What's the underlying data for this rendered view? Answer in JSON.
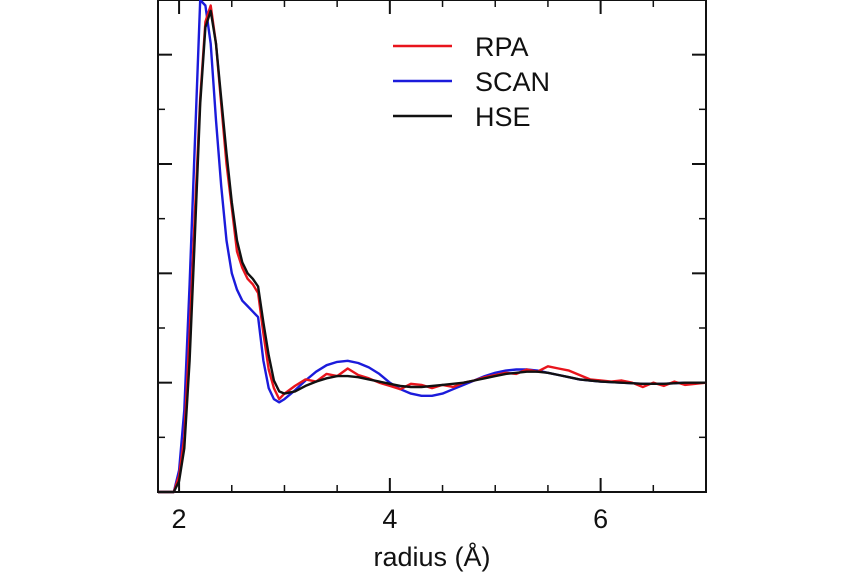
{
  "chart_data": {
    "type": "line",
    "title": "",
    "xlabel": "radius (Å)",
    "ylabel": "",
    "xlim": [
      1.8,
      7.0
    ],
    "ylim": [
      0,
      4.5
    ],
    "x_ticks": [
      2,
      4,
      6
    ],
    "x_minor_ticks": [
      2.5,
      3,
      3.5,
      4.5,
      5,
      5.5,
      6.5
    ],
    "y_ticks": [
      0.5,
      1,
      1.5,
      2,
      2.5,
      3,
      3.5,
      4
    ],
    "y_major_ticks": [
      1,
      2,
      3,
      4
    ],
    "x_tick_labels": [
      "2",
      "4",
      "6"
    ],
    "grid": false,
    "legend_position": "top-right",
    "series": [
      {
        "name": "RPA",
        "color": "#e8141c",
        "x": [
          1.8,
          1.95,
          2.0,
          2.05,
          2.1,
          2.15,
          2.2,
          2.25,
          2.3,
          2.35,
          2.4,
          2.45,
          2.5,
          2.55,
          2.6,
          2.65,
          2.7,
          2.75,
          2.8,
          2.85,
          2.9,
          2.95,
          3.0,
          3.1,
          3.2,
          3.3,
          3.4,
          3.5,
          3.6,
          3.7,
          3.8,
          3.9,
          4.0,
          4.1,
          4.2,
          4.3,
          4.4,
          4.5,
          4.6,
          4.7,
          4.8,
          4.9,
          5.0,
          5.1,
          5.2,
          5.3,
          5.4,
          5.5,
          5.6,
          5.7,
          5.8,
          5.9,
          6.0,
          6.1,
          6.2,
          6.3,
          6.4,
          6.5,
          6.6,
          6.7,
          6.8,
          6.9,
          7.0
        ],
        "values": [
          0.0,
          0.0,
          0.15,
          0.5,
          1.45,
          2.55,
          3.6,
          4.3,
          4.45,
          4.1,
          3.55,
          3.0,
          2.6,
          2.2,
          2.05,
          1.95,
          1.9,
          1.82,
          1.45,
          1.12,
          0.95,
          0.85,
          0.9,
          0.97,
          1.03,
          1.01,
          1.08,
          1.06,
          1.13,
          1.07,
          1.04,
          1.0,
          0.97,
          0.94,
          0.99,
          0.98,
          0.95,
          0.98,
          0.96,
          1.0,
          1.02,
          1.05,
          1.07,
          1.09,
          1.08,
          1.12,
          1.1,
          1.15,
          1.13,
          1.11,
          1.07,
          1.03,
          1.02,
          1.01,
          1.02,
          1.0,
          0.96,
          1.0,
          0.97,
          1.01,
          0.98,
          0.99,
          1.0
        ]
      },
      {
        "name": "SCAN",
        "color": "#1b1bdb",
        "x": [
          1.8,
          1.95,
          2.0,
          2.05,
          2.1,
          2.15,
          2.2,
          2.25,
          2.3,
          2.35,
          2.4,
          2.45,
          2.5,
          2.55,
          2.6,
          2.65,
          2.7,
          2.75,
          2.8,
          2.85,
          2.9,
          2.95,
          3.0,
          3.1,
          3.2,
          3.3,
          3.4,
          3.5,
          3.6,
          3.7,
          3.8,
          3.9,
          4.0,
          4.1,
          4.2,
          4.3,
          4.4,
          4.5,
          4.6,
          4.7,
          4.8,
          4.9,
          5.0,
          5.1,
          5.2,
          5.3,
          5.4,
          5.5,
          5.6,
          5.7,
          5.8,
          5.9,
          6.0,
          6.2,
          6.4,
          6.6,
          6.8,
          7.0
        ],
        "values": [
          0.0,
          0.0,
          0.2,
          0.75,
          1.9,
          3.2,
          4.5,
          4.45,
          4.1,
          3.4,
          2.8,
          2.3,
          2.0,
          1.85,
          1.75,
          1.7,
          1.65,
          1.6,
          1.2,
          0.95,
          0.85,
          0.82,
          0.85,
          0.93,
          1.02,
          1.1,
          1.16,
          1.19,
          1.2,
          1.18,
          1.14,
          1.08,
          1.0,
          0.94,
          0.9,
          0.88,
          0.88,
          0.9,
          0.94,
          0.98,
          1.02,
          1.06,
          1.09,
          1.11,
          1.12,
          1.12,
          1.11,
          1.09,
          1.07,
          1.05,
          1.03,
          1.02,
          1.01,
          1.0,
          0.99,
          0.99,
          1.0,
          1.0
        ]
      },
      {
        "name": "HSE",
        "color": "#111111",
        "x": [
          1.8,
          1.95,
          2.0,
          2.05,
          2.1,
          2.15,
          2.2,
          2.25,
          2.3,
          2.35,
          2.4,
          2.45,
          2.5,
          2.55,
          2.6,
          2.65,
          2.7,
          2.75,
          2.8,
          2.85,
          2.9,
          2.95,
          3.0,
          3.1,
          3.2,
          3.3,
          3.4,
          3.5,
          3.6,
          3.7,
          3.8,
          3.9,
          4.0,
          4.1,
          4.2,
          4.3,
          4.4,
          4.5,
          4.6,
          4.7,
          4.8,
          4.9,
          5.0,
          5.1,
          5.2,
          5.3,
          5.4,
          5.5,
          5.6,
          5.7,
          5.8,
          5.9,
          6.0,
          6.2,
          6.4,
          6.6,
          6.8,
          7.0
        ],
        "values": [
          0.0,
          0.0,
          0.1,
          0.4,
          1.2,
          2.35,
          3.55,
          4.25,
          4.4,
          4.1,
          3.6,
          3.1,
          2.65,
          2.3,
          2.1,
          2.0,
          1.95,
          1.88,
          1.55,
          1.25,
          1.02,
          0.92,
          0.9,
          0.92,
          0.97,
          1.01,
          1.04,
          1.06,
          1.06,
          1.05,
          1.03,
          1.01,
          0.99,
          0.97,
          0.96,
          0.96,
          0.97,
          0.98,
          0.99,
          1.0,
          1.02,
          1.04,
          1.06,
          1.08,
          1.09,
          1.1,
          1.1,
          1.09,
          1.07,
          1.05,
          1.03,
          1.02,
          1.01,
          1.0,
          0.99,
          0.99,
          1.0,
          1.0
        ]
      }
    ]
  }
}
